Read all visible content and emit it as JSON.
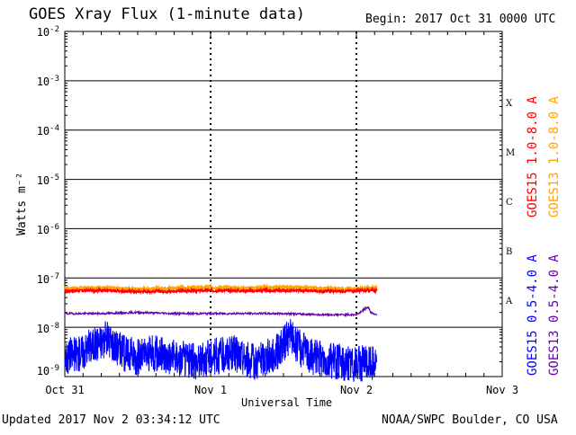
{
  "header": {
    "title": "GOES Xray Flux (1-minute data)",
    "begin": "Begin:  2017 Oct 31 0000 UTC"
  },
  "footer": {
    "updated": "Updated 2017 Nov  2 03:34:12 UTC",
    "credit": "NOAA/SWPC Boulder, CO USA"
  },
  "colors": {
    "goes15_long": "#ff0000",
    "goes13_long": "#ffa500",
    "goes15_short": "#0000ff",
    "goes13_short": "#6600aa",
    "grid": "#000000"
  },
  "chart_data": {
    "type": "line",
    "title": "GOES Xray Flux (1-minute data)",
    "xlabel": "Universal Time",
    "ylabel": "Watts m⁻²",
    "yscale": "log",
    "ylim": [
      1e-09,
      0.01
    ],
    "xlim": [
      "Oct 31",
      "Nov 3"
    ],
    "x_ticks": [
      "Oct 31",
      "Nov 1",
      "Nov 2",
      "Nov 3"
    ],
    "y_ticks": [
      {
        "base": "10",
        "exp": "-2"
      },
      {
        "base": "10",
        "exp": "-3"
      },
      {
        "base": "10",
        "exp": "-4"
      },
      {
        "base": "10",
        "exp": "-5"
      },
      {
        "base": "10",
        "exp": "-6"
      },
      {
        "base": "10",
        "exp": "-7"
      },
      {
        "base": "10",
        "exp": "-8"
      },
      {
        "base": "10",
        "exp": "-9"
      }
    ],
    "flare_classes": [
      "X",
      "M",
      "C",
      "B",
      "A"
    ],
    "grid": true,
    "legend_position": "right",
    "series": [
      {
        "name": "GOES15 1.0-8.0 A",
        "color": "#ff0000",
        "x_days": [
          0,
          0.25,
          0.5,
          0.75,
          1.0,
          1.25,
          1.5,
          1.75,
          2.0,
          2.14
        ],
        "values": [
          5.5e-08,
          5.6e-08,
          5.3e-08,
          5.4e-08,
          5.6e-08,
          5.5e-08,
          5.6e-08,
          5.4e-08,
          5.5e-08,
          5.6e-08
        ]
      },
      {
        "name": "GOES13 1.0-8.0 A",
        "color": "#ffa500",
        "x_days": [
          0,
          0.25,
          0.5,
          0.75,
          1.0,
          1.25,
          1.5,
          1.75,
          2.0,
          2.14
        ],
        "values": [
          6.2e-08,
          6.4e-08,
          6e-08,
          6.3e-08,
          6.5e-08,
          6.3e-08,
          6.6e-08,
          6.2e-08,
          6.1e-08,
          6.3e-08
        ]
      },
      {
        "name": "GOES15 0.5-4.0 A",
        "color": "#0000ff",
        "x_days": [
          0,
          0.1,
          0.2,
          0.3,
          0.4,
          0.5,
          0.6,
          0.75,
          0.9,
          1.0,
          1.15,
          1.3,
          1.45,
          1.55,
          1.6,
          1.7,
          1.85,
          2.0,
          2.14
        ],
        "values": [
          2.5e-09,
          3e-09,
          4.5e-09,
          6e-09,
          3e-09,
          2.5e-09,
          3e-09,
          2.5e-09,
          2e-09,
          2.5e-09,
          3e-09,
          2e-09,
          3e-09,
          7e-09,
          4e-09,
          2.5e-09,
          2e-09,
          1.8e-09,
          2e-09
        ]
      },
      {
        "name": "GOES13 0.5-4.0 A",
        "color": "#6600aa",
        "x_days": [
          0,
          0.25,
          0.5,
          0.75,
          1.0,
          1.25,
          1.5,
          1.75,
          2.0,
          2.08,
          2.1,
          2.14
        ],
        "values": [
          1.9e-08,
          1.9e-08,
          2e-08,
          1.9e-08,
          1.9e-08,
          1.9e-08,
          1.9e-08,
          1.8e-08,
          1.8e-08,
          2.6e-08,
          2e-08,
          1.8e-08
        ]
      }
    ]
  }
}
